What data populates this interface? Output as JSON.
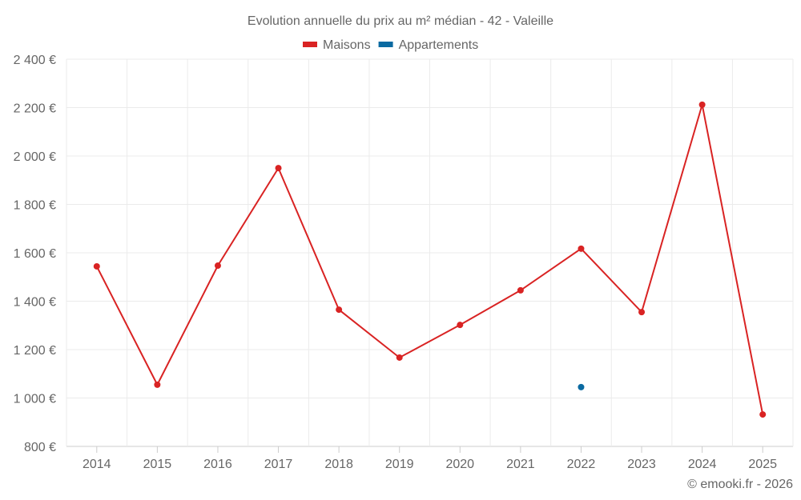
{
  "chart_data": {
    "type": "line",
    "title": "Evolution annuelle du prix au m² médian - 42 - Valeille",
    "categories": [
      "2014",
      "2015",
      "2016",
      "2017",
      "2018",
      "2019",
      "2020",
      "2021",
      "2022",
      "2023",
      "2024",
      "2025"
    ],
    "series": [
      {
        "name": "Maisons",
        "color": "#d92323",
        "values": [
          1544,
          1055,
          1547,
          1950,
          1365,
          1167,
          1302,
          1445,
          1617,
          1355,
          2212,
          932
        ]
      },
      {
        "name": "Appartements",
        "color": "#0a6aa1",
        "values": [
          null,
          null,
          null,
          null,
          null,
          null,
          null,
          null,
          1045,
          null,
          null,
          null
        ]
      }
    ],
    "ylim": [
      800,
      2400
    ],
    "yticks": [
      800,
      1000,
      1200,
      1400,
      1600,
      1800,
      2000,
      2200,
      2400
    ],
    "ytick_labels": [
      "800 €",
      "1 000 €",
      "1 200 €",
      "1 400 €",
      "1 600 €",
      "1 800 €",
      "2 000 €",
      "2 200 €",
      "2 400 €"
    ],
    "grid": true,
    "legend": "top-center",
    "credit": "© emooki.fr - 2026"
  }
}
